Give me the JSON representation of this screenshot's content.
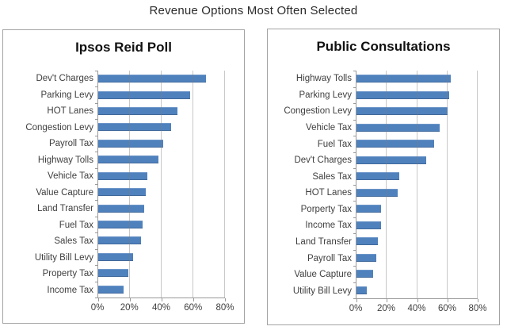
{
  "figure": {
    "title": "Revenue Options Most Often Selected"
  },
  "chart_data": [
    {
      "type": "bar",
      "orientation": "horizontal",
      "title": "Ipsos Reid Poll",
      "categories": [
        "Dev't Charges",
        "Parking Levy",
        "HOT Lanes",
        "Congestion Levy",
        "Payroll Tax",
        "Highway Tolls",
        "Vehicle Tax",
        "Value Capture",
        "Land Transfer",
        "Fuel Tax",
        "Sales Tax",
        "Utility Bill Levy",
        "Property Tax",
        "Income Tax"
      ],
      "values": [
        68,
        58,
        50,
        46,
        41,
        38,
        31,
        30,
        29,
        28,
        27,
        22,
        19,
        16
      ],
      "xlabel": "",
      "ylabel": "",
      "xlim": [
        0,
        80
      ],
      "xtick_values": [
        0,
        20,
        40,
        60,
        80
      ],
      "xtick_labels": [
        "0%",
        "20%",
        "40%",
        "60%",
        "80%"
      ],
      "grid": true,
      "legend": false,
      "bar_color": "#4f81bd"
    },
    {
      "type": "bar",
      "orientation": "horizontal",
      "title": "Public Consultations",
      "categories": [
        "Highway Tolls",
        "Parking Levy",
        "Congestion Levy",
        "Vehicle Tax",
        "Fuel Tax",
        "Dev't Charges",
        "Sales Tax",
        "HOT Lanes",
        "Porperty Tax",
        "Income Tax",
        "Land Transfer",
        "Payroll Tax",
        "Value Capture",
        "Utility Bill Levy"
      ],
      "values": [
        62,
        61,
        60,
        55,
        51,
        46,
        28,
        27,
        16,
        16,
        14,
        13,
        11,
        7
      ],
      "xlabel": "",
      "ylabel": "",
      "xlim": [
        0,
        80
      ],
      "xtick_values": [
        0,
        20,
        40,
        60,
        80
      ],
      "xtick_labels": [
        "0%",
        "20%",
        "40%",
        "60%",
        "80%"
      ],
      "grid": true,
      "legend": false,
      "bar_color": "#4f81bd"
    }
  ],
  "colors": {
    "bar": "#4f81bd",
    "gridline": "#c3c3c3",
    "axis_line": "#9a9a9a",
    "panel_border": "#a3a3a3",
    "label_text": "#3f3f3f",
    "title_text": "#2b2b2b"
  }
}
